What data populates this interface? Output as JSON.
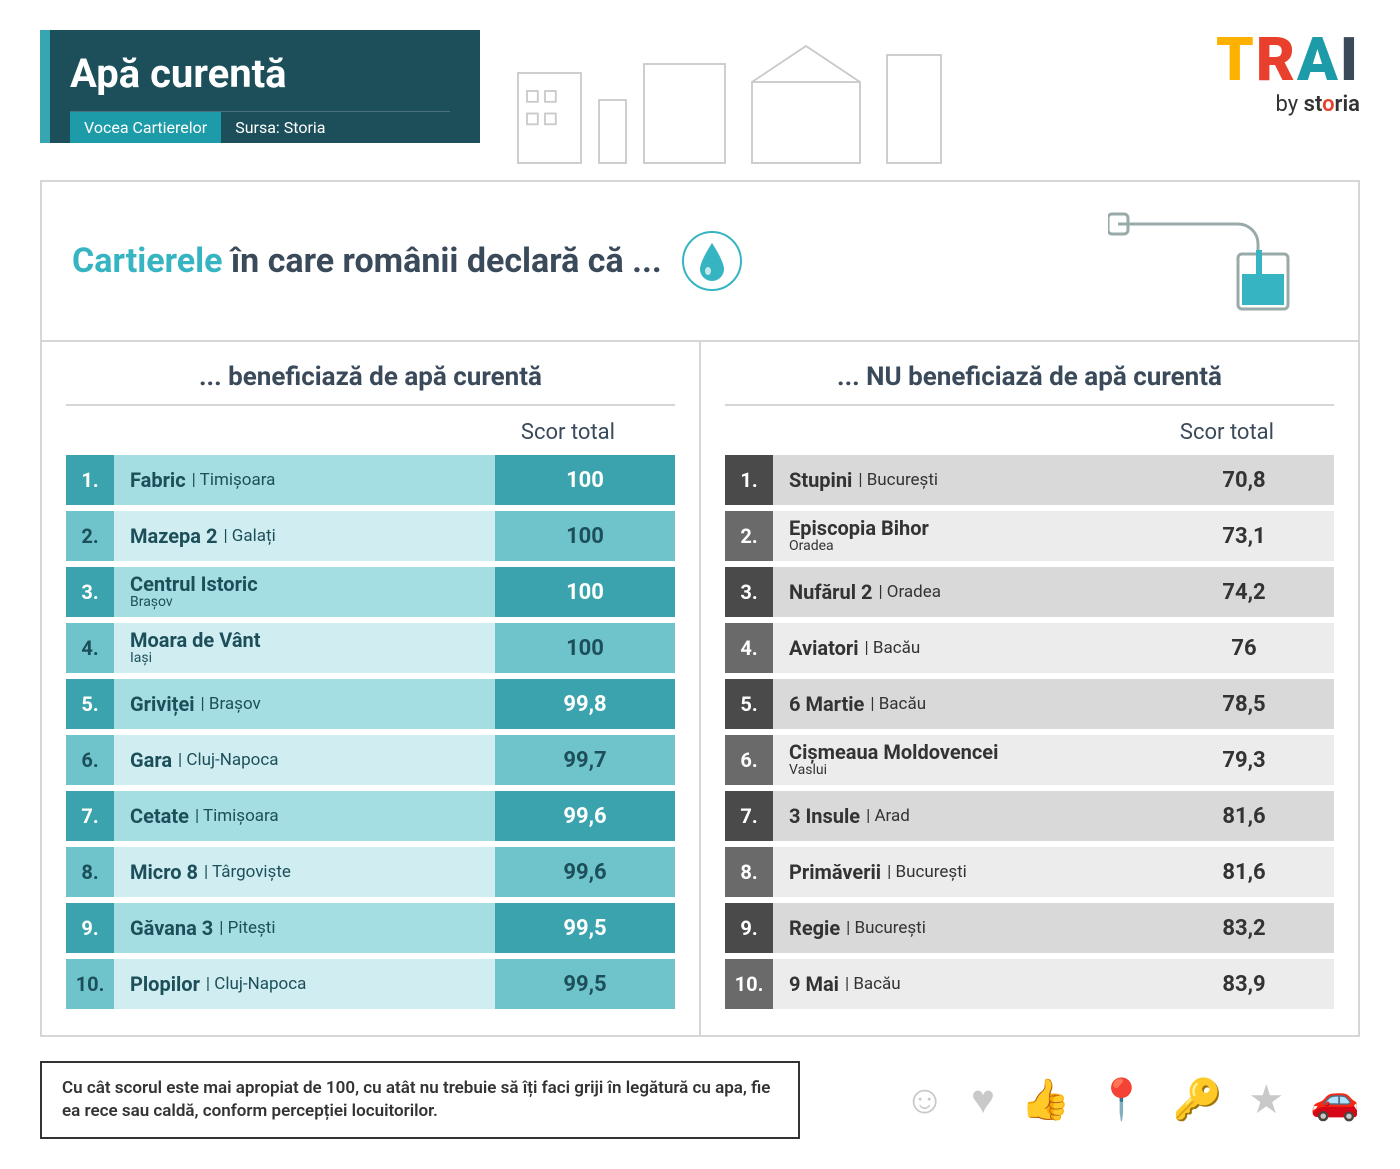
{
  "header": {
    "title": "Apă curentă",
    "subtitle1": "Vocea Cartierelor",
    "subtitle2": "Sursa: Storia"
  },
  "logo": {
    "text": "TRAI",
    "byline_prefix": "by ",
    "brand": "storia"
  },
  "subtitle": {
    "highlight": "Cartierele",
    "rest": " în care românii declară că ..."
  },
  "columns": {
    "a": {
      "title": "... beneficiază de apă curentă",
      "score_label": "Scor total",
      "rows": [
        {
          "rank": "1.",
          "name": "Fabric",
          "city": "Timișoara",
          "stacked": false,
          "score": "100"
        },
        {
          "rank": "2.",
          "name": "Mazepa 2",
          "city": "Galați",
          "stacked": false,
          "score": "100"
        },
        {
          "rank": "3.",
          "name": "Centrul Istoric",
          "city": "Brașov",
          "stacked": true,
          "score": "100"
        },
        {
          "rank": "4.",
          "name": "Moara de Vânt",
          "city": "Iași",
          "stacked": true,
          "score": "100"
        },
        {
          "rank": "5.",
          "name": "Griviței",
          "city": "Brașov",
          "stacked": false,
          "score": "99,8"
        },
        {
          "rank": "6.",
          "name": "Gara",
          "city": "Cluj-Napoca",
          "stacked": false,
          "score": "99,7"
        },
        {
          "rank": "7.",
          "name": "Cetate",
          "city": "Timișoara",
          "stacked": false,
          "score": "99,6"
        },
        {
          "rank": "8.",
          "name": "Micro 8",
          "city": "Târgoviște",
          "stacked": false,
          "score": "99,6"
        },
        {
          "rank": "9.",
          "name": "Găvana 3",
          "city": "Pitești",
          "stacked": false,
          "score": "99,5"
        },
        {
          "rank": "10.",
          "name": "Plopilor",
          "city": "Cluj-Napoca",
          "stacked": false,
          "score": "99,5"
        }
      ]
    },
    "b": {
      "title": "... NU beneficiază de apă curentă",
      "score_label": "Scor total",
      "rows": [
        {
          "rank": "1.",
          "name": "Stupini",
          "city": "București",
          "stacked": false,
          "score": "70,8"
        },
        {
          "rank": "2.",
          "name": "Episcopia Bihor",
          "city": "Oradea",
          "stacked": true,
          "score": "73,1"
        },
        {
          "rank": "3.",
          "name": "Nufărul 2",
          "city": "Oradea",
          "stacked": false,
          "score": "74,2"
        },
        {
          "rank": "4.",
          "name": "Aviatori",
          "city": "Bacău",
          "stacked": false,
          "score": "76"
        },
        {
          "rank": "5.",
          "name": "6 Martie",
          "city": "Bacău",
          "stacked": false,
          "score": "78,5"
        },
        {
          "rank": "6.",
          "name": "Cișmeaua Moldovencei",
          "city": "Vaslui",
          "stacked": true,
          "score": "79,3"
        },
        {
          "rank": "7.",
          "name": "3 Insule",
          "city": "Arad",
          "stacked": false,
          "score": "81,6"
        },
        {
          "rank": "8.",
          "name": "Primăverii",
          "city": "București",
          "stacked": false,
          "score": "81,6"
        },
        {
          "rank": "9.",
          "name": "Regie",
          "city": "București",
          "stacked": false,
          "score": "83,2"
        },
        {
          "rank": "10.",
          "name": "9 Mai",
          "city": "Bacău",
          "stacked": false,
          "score": "83,9"
        }
      ]
    }
  },
  "footnote": "Cu cât scorul este mai apropiat de 100, cu atât nu trebuie să îți faci griji în legătură cu apa, fie ea rece sau caldă, conform percepției locuitorilor.",
  "colors": {
    "title_bg": "#1c4f5a",
    "accent": "#36a6b2",
    "col_a_dark": "#3aa3ad",
    "col_a_light": "#a4dde2",
    "col_b_dark": "#4a4a4a",
    "col_b_light": "#d9d9d9"
  },
  "footer_icons": [
    "smile-icon",
    "heart-icon",
    "thumbs-up-icon",
    "pin-icon",
    "key-icon",
    "star-icon",
    "car-icon"
  ]
}
